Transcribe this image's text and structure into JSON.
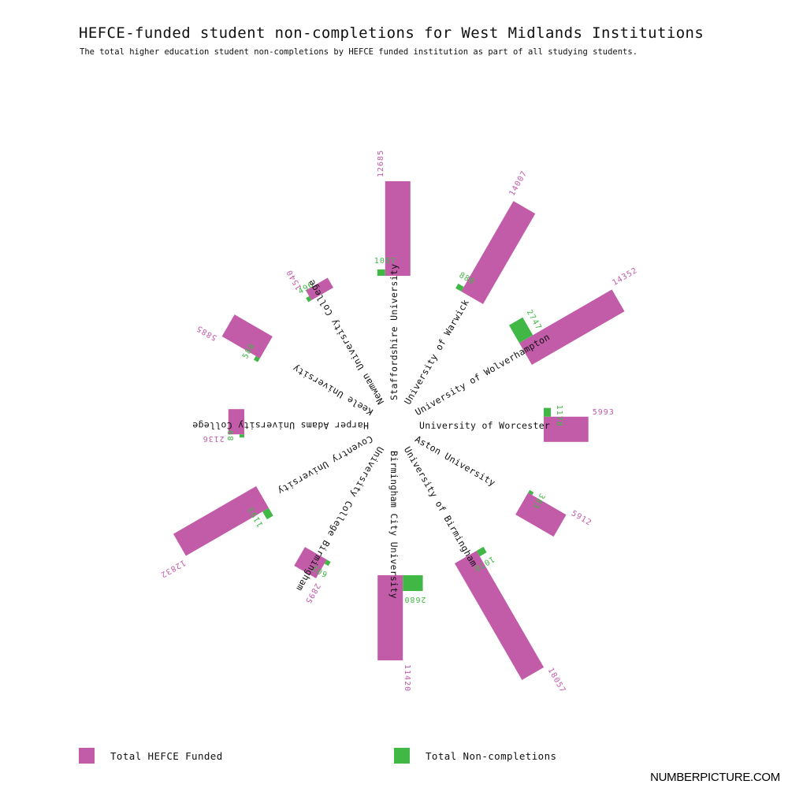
{
  "chart_data": {
    "type": "bar",
    "layout": "radial",
    "title": "HEFCE-funded student non-completions for West Midlands Institutions",
    "subtitle": "The total higher education student non-completions by HEFCE funded institution as part of all studying students.",
    "series": [
      {
        "key": "funded",
        "name": "Total HEFCE Funded"
      },
      {
        "key": "noncomp",
        "name": "Total Non-completions"
      }
    ],
    "institutions": [
      {
        "name": "Staffordshire University",
        "funded": 12685,
        "noncomp": 1057
      },
      {
        "name": "University of Warwick",
        "funded": 14007,
        "noncomp": 880
      },
      {
        "name": "University of Wolverhampton",
        "funded": 14352,
        "noncomp": 2747
      },
      {
        "name": "University of Worcester",
        "funded": 5993,
        "noncomp": 1178
      },
      {
        "name": "Aston University",
        "funded": 5912,
        "noncomp": 383
      },
      {
        "name": "University of Birmingham",
        "funded": 18057,
        "noncomp": 1070
      },
      {
        "name": "Birmingham City University",
        "funded": 11420,
        "noncomp": 2680
      },
      {
        "name": "University College Birmingham",
        "funded": 2895,
        "noncomp": 602
      },
      {
        "name": "Coventry University",
        "funded": 12832,
        "noncomp": 1193
      },
      {
        "name": "Harper Adams University College",
        "funded": 2136,
        "noncomp": 89
      },
      {
        "name": "Keele University",
        "funded": 5885,
        "noncomp": 588
      },
      {
        "name": "Newman University College",
        "funded": 1540,
        "noncomp": 496
      }
    ],
    "colors": {
      "funded": "#c25ca9",
      "noncomp": "#41b845"
    }
  },
  "legend": {
    "funded_label": "Total HEFCE Funded",
    "noncomp_label": "Total Non-completions"
  },
  "brand": "NUMBERPICTURE.COM"
}
